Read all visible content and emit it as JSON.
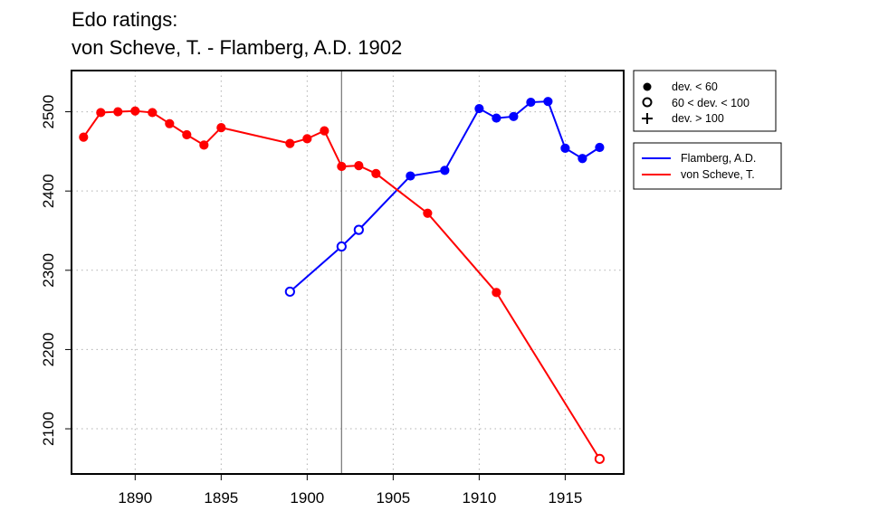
{
  "chart_data": {
    "type": "line",
    "title_line1": "Edo ratings:",
    "title_line2": "von Scheve, T. - Flamberg, A.D. 1902",
    "xlabel": "",
    "ylabel": "",
    "xlim": [
      1886.3,
      1918.4
    ],
    "ylim": [
      2043,
      2552
    ],
    "x_ticks": [
      1890,
      1895,
      1900,
      1905,
      1910,
      1915
    ],
    "y_ticks": [
      2100,
      2200,
      2300,
      2400,
      2500
    ],
    "grid": true,
    "reference_line_x": 1902,
    "marker_legend": [
      {
        "symbol": "filled-circle",
        "label": "dev. < 60"
      },
      {
        "symbol": "open-circle",
        "label": "60 < dev. < 100"
      },
      {
        "symbol": "plus",
        "label": "dev. > 100"
      }
    ],
    "series": [
      {
        "name": "Flamberg, A.D.",
        "color": "#0000ff",
        "points": [
          {
            "x": 1899,
            "y": 2273,
            "marker": "open"
          },
          {
            "x": 1902,
            "y": 2330,
            "marker": "open"
          },
          {
            "x": 1903,
            "y": 2351,
            "marker": "open"
          },
          {
            "x": 1906,
            "y": 2419,
            "marker": "filled"
          },
          {
            "x": 1908,
            "y": 2426,
            "marker": "filled"
          },
          {
            "x": 1910,
            "y": 2504,
            "marker": "filled"
          },
          {
            "x": 1911,
            "y": 2492,
            "marker": "filled"
          },
          {
            "x": 1912,
            "y": 2494,
            "marker": "filled"
          },
          {
            "x": 1913,
            "y": 2512,
            "marker": "filled"
          },
          {
            "x": 1914,
            "y": 2513,
            "marker": "filled"
          },
          {
            "x": 1915,
            "y": 2454,
            "marker": "filled"
          },
          {
            "x": 1916,
            "y": 2441,
            "marker": "filled"
          },
          {
            "x": 1917,
            "y": 2455,
            "marker": "filled"
          }
        ]
      },
      {
        "name": "von Scheve, T.",
        "color": "#ff0000",
        "points": [
          {
            "x": 1887,
            "y": 2468,
            "marker": "filled"
          },
          {
            "x": 1888,
            "y": 2499,
            "marker": "filled"
          },
          {
            "x": 1889,
            "y": 2500,
            "marker": "filled"
          },
          {
            "x": 1890,
            "y": 2501,
            "marker": "filled"
          },
          {
            "x": 1891,
            "y": 2499,
            "marker": "filled"
          },
          {
            "x": 1892,
            "y": 2485,
            "marker": "filled"
          },
          {
            "x": 1893,
            "y": 2471,
            "marker": "filled"
          },
          {
            "x": 1894,
            "y": 2458,
            "marker": "filled"
          },
          {
            "x": 1895,
            "y": 2480,
            "marker": "filled"
          },
          {
            "x": 1899,
            "y": 2460,
            "marker": "filled"
          },
          {
            "x": 1900,
            "y": 2466,
            "marker": "filled"
          },
          {
            "x": 1901,
            "y": 2476,
            "marker": "filled"
          },
          {
            "x": 1902,
            "y": 2431,
            "marker": "filled"
          },
          {
            "x": 1903,
            "y": 2432,
            "marker": "filled"
          },
          {
            "x": 1904,
            "y": 2422,
            "marker": "filled"
          },
          {
            "x": 1907,
            "y": 2372,
            "marker": "filled"
          },
          {
            "x": 1911,
            "y": 2272,
            "marker": "filled"
          },
          {
            "x": 1917,
            "y": 2062,
            "marker": "open"
          }
        ]
      }
    ]
  }
}
